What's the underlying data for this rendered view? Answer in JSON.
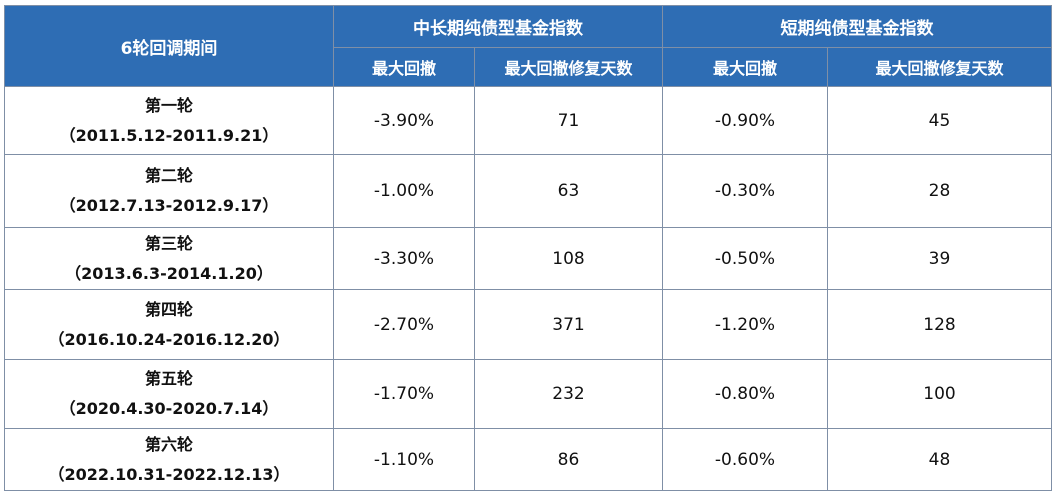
{
  "table": {
    "period_header": "6轮回调期间",
    "groups": [
      "中长期纯债型基金指数",
      "短期纯债型基金指数"
    ],
    "sub_headers": [
      "最大回撤",
      "最大回撤修复天数",
      "最大回撤",
      "最大回撤修复天数"
    ],
    "rows": [
      {
        "round": "第一轮",
        "range": "（2011.5.12-2011.9.21）",
        "mid_drawdown": "-3.90%",
        "mid_days": "71",
        "short_drawdown": "-0.90%",
        "short_days": "45"
      },
      {
        "round": "第二轮",
        "range": "（2012.7.13-2012.9.17）",
        "mid_drawdown": "-1.00%",
        "mid_days": "63",
        "short_drawdown": "-0.30%",
        "short_days": "28"
      },
      {
        "round": "第三轮",
        "range": "（2013.6.3-2014.1.20）",
        "mid_drawdown": "-3.30%",
        "mid_days": "108",
        "short_drawdown": "-0.50%",
        "short_days": "39"
      },
      {
        "round": "第四轮",
        "range": "（2016.10.24-2016.12.20）",
        "mid_drawdown": "-2.70%",
        "mid_days": "371",
        "short_drawdown": "-1.20%",
        "short_days": "128"
      },
      {
        "round": "第五轮",
        "range": "（2020.4.30-2020.7.14）",
        "mid_drawdown": "-1.70%",
        "mid_days": "232",
        "short_drawdown": "-0.80%",
        "short_days": "100"
      },
      {
        "round": "第六轮",
        "range": "（2022.10.31-2022.12.13）",
        "mid_drawdown": "-1.10%",
        "mid_days": "86",
        "short_drawdown": "-0.60%",
        "short_days": "48"
      }
    ]
  }
}
